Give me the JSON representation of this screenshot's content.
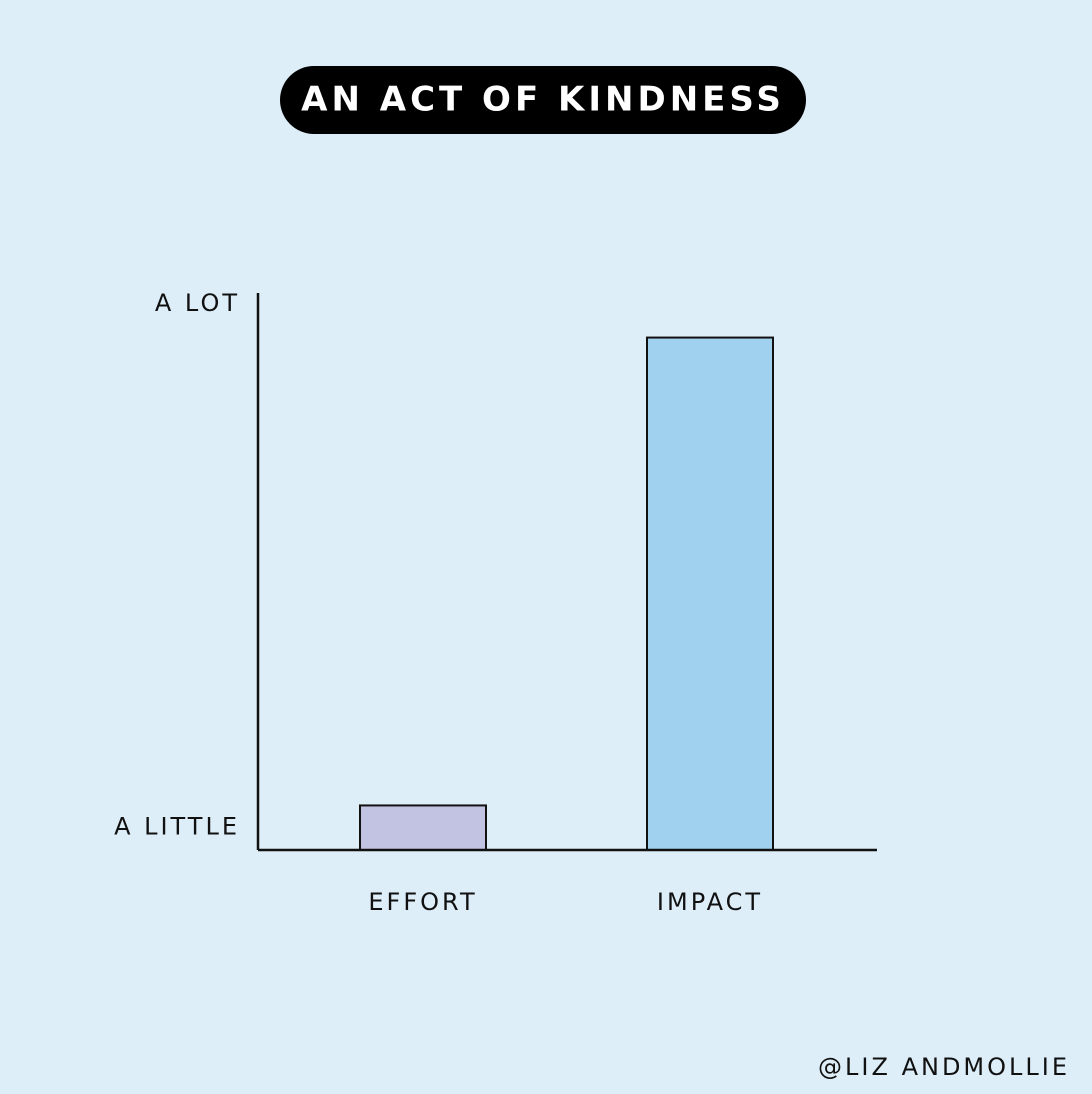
{
  "chart_data": {
    "type": "bar",
    "title": "AN ACT OF KINDNESS",
    "categories": [
      "EFFORT",
      "IMPACT"
    ],
    "values": [
      8,
      92
    ],
    "series_colors": [
      "#c2c3e2",
      "#a0d2ef"
    ],
    "ylim": [
      0,
      100
    ],
    "yticks": [
      {
        "value": 4,
        "label": "A LITTLE"
      },
      {
        "value": 98,
        "label": "A LOT"
      }
    ],
    "credit": "@LIZ ANDMOLLIE"
  }
}
